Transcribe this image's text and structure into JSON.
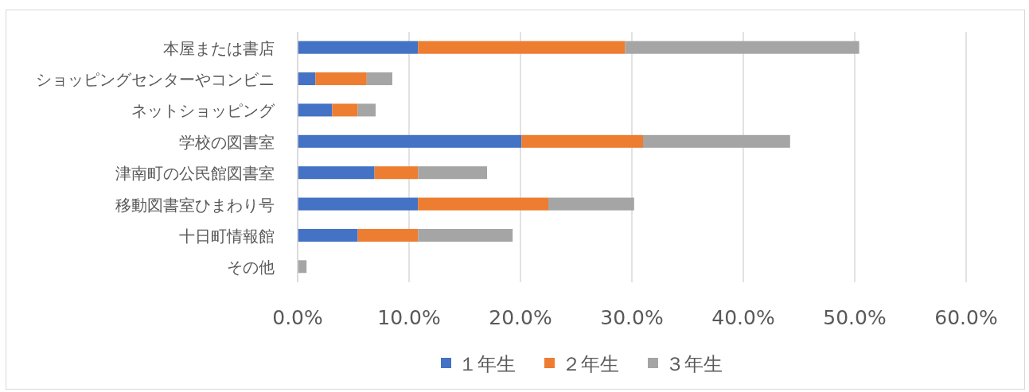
{
  "chart_data": {
    "type": "bar",
    "orientation": "horizontal",
    "stacked": true,
    "categories": [
      "本屋または書店",
      "ショッピングセンターやコンビニ",
      "ネットショッピング",
      "学校の図書室",
      "津南町の公民館図書室",
      "移動図書室ひまわり号",
      "十日町情報館",
      "その他"
    ],
    "series": [
      {
        "name": "１年生",
        "color": "#4472c4",
        "values": [
          10.8,
          1.6,
          3.1,
          20.1,
          6.9,
          10.8,
          5.4,
          0
        ]
      },
      {
        "name": "２年生",
        "color": "#ed7d31",
        "values": [
          18.6,
          4.6,
          2.3,
          10.9,
          3.9,
          11.7,
          5.4,
          0
        ]
      },
      {
        "name": "３年生",
        "color": "#a5a5a5",
        "values": [
          21.0,
          2.3,
          1.6,
          13.2,
          6.2,
          7.7,
          8.5,
          0.8
        ]
      }
    ],
    "xlim": [
      0,
      60
    ],
    "xticks": [
      {
        "value": 0,
        "label": "0.0%"
      },
      {
        "value": 10,
        "label": "10.0%"
      },
      {
        "value": 20,
        "label": "20.0%"
      },
      {
        "value": 30,
        "label": "30.0%"
      },
      {
        "value": 40,
        "label": "40.0%"
      },
      {
        "value": 50,
        "label": "50.0%"
      },
      {
        "value": 60,
        "label": "60.0%"
      }
    ],
    "grid": "x",
    "legend": "bottom"
  }
}
